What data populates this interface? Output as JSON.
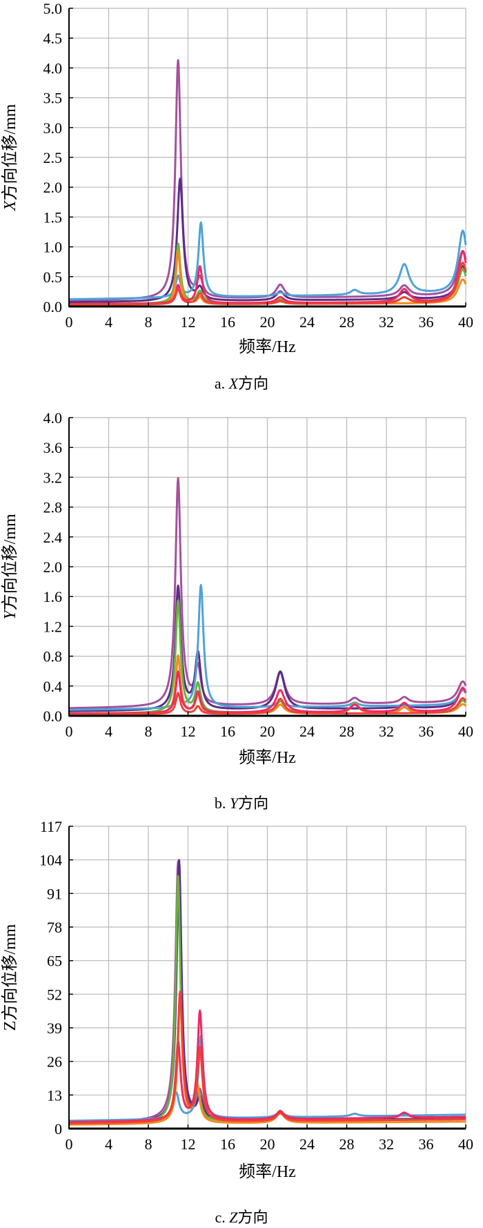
{
  "chart_data": [
    {
      "type": "line",
      "caption_prefix": "a. ",
      "caption_axis": "X",
      "caption_suffix": "方向",
      "ylabel_italic": "X",
      "ylabel_rest": "方向位移/mm",
      "xlabel": "频率/Hz",
      "xlim": [
        0,
        40
      ],
      "ylim": [
        0,
        5.0
      ],
      "xticks": [
        "0",
        "4",
        "8",
        "12",
        "16",
        "20",
        "24",
        "28",
        "32",
        "36",
        "40"
      ],
      "yticks": [
        "0.0",
        "0.5",
        "1.0",
        "1.5",
        "2.0",
        "2.5",
        "3.0",
        "3.5",
        "4.0",
        "4.5",
        "5.0"
      ],
      "grid": true,
      "series": [
        {
          "color": "#a4509c",
          "peaks": [
            [
              11.0,
              4.0,
              0.33
            ],
            [
              13.2,
              0.3,
              0.35
            ],
            [
              21.3,
              0.22,
              0.5
            ],
            [
              33.8,
              0.18,
              0.6
            ],
            [
              39.7,
              0.75,
              0.6
            ]
          ],
          "base": 0.1
        },
        {
          "color": "#5b2d86",
          "peaks": [
            [
              11.2,
              2.05,
              0.35
            ],
            [
              13.2,
              0.2,
              0.4
            ],
            [
              21.3,
              0.15,
              0.5
            ],
            [
              33.8,
              0.12,
              0.6
            ],
            [
              39.7,
              0.55,
              0.6
            ]
          ],
          "base": 0.07
        },
        {
          "color": "#4fa2d6",
          "peaks": [
            [
              11.0,
              0.35,
              0.3
            ],
            [
              13.3,
              1.25,
              0.3
            ],
            [
              21.3,
              0.06,
              0.5
            ],
            [
              28.8,
              0.08,
              0.5
            ],
            [
              33.8,
              0.5,
              0.6
            ],
            [
              39.7,
              1.05,
              0.55
            ]
          ],
          "base": 0.12
        },
        {
          "color": "#66b43c",
          "peaks": [
            [
              11.0,
              1.0,
              0.28
            ],
            [
              13.2,
              0.2,
              0.35
            ],
            [
              21.3,
              0.06,
              0.5
            ],
            [
              33.8,
              0.08,
              0.6
            ],
            [
              39.7,
              0.55,
              0.6
            ]
          ],
          "base": 0.04
        },
        {
          "color": "#f5891f",
          "peaks": [
            [
              11.0,
              0.9,
              0.25
            ],
            [
              13.2,
              0.12,
              0.3
            ],
            [
              21.3,
              0.04,
              0.5
            ],
            [
              39.7,
              0.4,
              0.6
            ]
          ],
          "base": 0.03
        },
        {
          "color": "#ec2a65",
          "peaks": [
            [
              11.0,
              0.3,
              0.28
            ],
            [
              13.2,
              0.62,
              0.3
            ],
            [
              21.3,
              0.1,
              0.5
            ],
            [
              33.8,
              0.22,
              0.6
            ],
            [
              39.7,
              0.85,
              0.55
            ]
          ],
          "base": 0.04
        },
        {
          "color": "#ef4136",
          "peaks": [
            [
              11.0,
              0.25,
              0.3
            ],
            [
              13.2,
              0.18,
              0.35
            ],
            [
              21.3,
              0.05,
              0.5
            ],
            [
              33.8,
              0.1,
              0.6
            ],
            [
              39.7,
              0.68,
              0.6
            ]
          ],
          "base": 0.03
        }
      ]
    },
    {
      "type": "line",
      "caption_prefix": "b. ",
      "caption_axis": "Y",
      "caption_suffix": "方向",
      "ylabel_italic": "Y",
      "ylabel_rest": "方向位移/mm",
      "xlabel": "频率/Hz",
      "xlim": [
        0,
        40
      ],
      "ylim": [
        0,
        4.0
      ],
      "xticks": [
        "0",
        "4",
        "8",
        "12",
        "16",
        "20",
        "24",
        "28",
        "32",
        "36",
        "40"
      ],
      "yticks": [
        "0.0",
        "0.4",
        "0.8",
        "1.2",
        "1.6",
        "2.0",
        "2.4",
        "2.8",
        "3.2",
        "3.6",
        "4.0"
      ],
      "grid": true,
      "series": [
        {
          "color": "#a4509c",
          "peaks": [
            [
              11.0,
              3.05,
              0.33
            ],
            [
              13.0,
              0.5,
              0.35
            ],
            [
              21.3,
              0.45,
              0.55
            ],
            [
              28.8,
              0.08,
              0.5
            ],
            [
              33.8,
              0.08,
              0.5
            ],
            [
              39.7,
              0.28,
              0.6
            ]
          ],
          "base": 0.1
        },
        {
          "color": "#5b2d86",
          "peaks": [
            [
              11.0,
              1.65,
              0.33
            ],
            [
              13.0,
              0.75,
              0.35
            ],
            [
              21.3,
              0.5,
              0.55
            ],
            [
              33.8,
              0.06,
              0.5
            ],
            [
              39.7,
              0.25,
              0.6
            ]
          ],
          "base": 0.06
        },
        {
          "color": "#4fa2d6",
          "peaks": [
            [
              11.0,
              0.15,
              0.3
            ],
            [
              13.3,
              1.65,
              0.32
            ],
            [
              21.3,
              0.08,
              0.5
            ],
            [
              28.8,
              0.05,
              0.5
            ],
            [
              39.7,
              0.2,
              0.6
            ]
          ],
          "base": 0.08
        },
        {
          "color": "#66b43c",
          "peaks": [
            [
              11.0,
              1.5,
              0.3
            ],
            [
              13.0,
              0.38,
              0.32
            ],
            [
              21.3,
              0.15,
              0.5
            ],
            [
              28.8,
              0.12,
              0.5
            ],
            [
              33.8,
              0.06,
              0.5
            ],
            [
              39.7,
              0.15,
              0.6
            ]
          ],
          "base": 0.03
        },
        {
          "color": "#f5891f",
          "peaks": [
            [
              11.0,
              0.78,
              0.28
            ],
            [
              13.0,
              0.25,
              0.3
            ],
            [
              21.3,
              0.12,
              0.5
            ],
            [
              28.8,
              0.13,
              0.5
            ],
            [
              33.8,
              0.08,
              0.5
            ],
            [
              39.7,
              0.12,
              0.6
            ]
          ],
          "base": 0.02
        },
        {
          "color": "#ec2a65",
          "peaks": [
            [
              11.0,
              0.55,
              0.28
            ],
            [
              13.0,
              0.28,
              0.3
            ],
            [
              21.3,
              0.3,
              0.55
            ],
            [
              28.8,
              0.1,
              0.5
            ],
            [
              33.8,
              0.12,
              0.5
            ],
            [
              39.7,
              0.32,
              0.6
            ]
          ],
          "base": 0.03
        },
        {
          "color": "#ef4136",
          "peaks": [
            [
              11.0,
              0.28,
              0.28
            ],
            [
              13.0,
              0.1,
              0.3
            ],
            [
              21.3,
              0.2,
              0.5
            ],
            [
              39.7,
              0.2,
              0.6
            ]
          ],
          "base": 0.02
        }
      ]
    },
    {
      "type": "line",
      "caption_prefix": "c. ",
      "caption_axis": "Z",
      "caption_suffix": "方向",
      "ylabel_italic": "",
      "ylabel_rest": "Z方向位移/mm",
      "xlabel": "频率/Hz",
      "xlim": [
        0,
        40
      ],
      "ylim": [
        0,
        117
      ],
      "xticks": [
        "0",
        "4",
        "8",
        "12",
        "16",
        "20",
        "24",
        "28",
        "32",
        "36",
        "40"
      ],
      "yticks": [
        "0",
        "13",
        "26",
        "39",
        "52",
        "65",
        "78",
        "91",
        "104",
        "117"
      ],
      "grid": true,
      "series": [
        {
          "color": "#a4509c",
          "peaks": [
            [
              11.0,
              100,
              0.33
            ],
            [
              13.2,
              10,
              0.35
            ],
            [
              21.3,
              3,
              0.5
            ],
            [
              33.8,
              1.5,
              0.5
            ]
          ],
          "base": 2.5
        },
        {
          "color": "#5b2d86",
          "peaks": [
            [
              11.1,
              101,
              0.3
            ],
            [
              13.2,
              8,
              0.35
            ],
            [
              21.3,
              3,
              0.5
            ]
          ],
          "base": 2.2
        },
        {
          "color": "#66b43c",
          "peaks": [
            [
              11.0,
              95,
              0.28
            ],
            [
              13.0,
              12,
              0.32
            ],
            [
              21.3,
              4,
              0.5
            ]
          ],
          "base": 2.0
        },
        {
          "color": "#4fa2d6",
          "peaks": [
            [
              10.8,
              10,
              0.35
            ],
            [
              13.3,
              32,
              0.3
            ],
            [
              21.3,
              2,
              0.5
            ],
            [
              28.8,
              1,
              0.5
            ]
          ],
          "base": 3.0
        },
        {
          "color": "#f5891f",
          "peaks": [
            [
              11.2,
              48,
              0.28
            ],
            [
              12.9,
              15,
              0.32
            ],
            [
              21.3,
              4,
              0.5
            ]
          ],
          "base": 1.5
        },
        {
          "color": "#ec2a65",
          "peaks": [
            [
              11.0,
              30,
              0.3
            ],
            [
              13.2,
              42,
              0.3
            ],
            [
              21.3,
              3,
              0.5
            ],
            [
              33.8,
              2,
              0.5
            ]
          ],
          "base": 2.5
        },
        {
          "color": "#ef4136",
          "peaks": [
            [
              11.2,
              50,
              0.3
            ],
            [
              13.2,
              28,
              0.3
            ],
            [
              21.3,
              3,
              0.5
            ]
          ],
          "base": 2.0
        }
      ]
    }
  ]
}
